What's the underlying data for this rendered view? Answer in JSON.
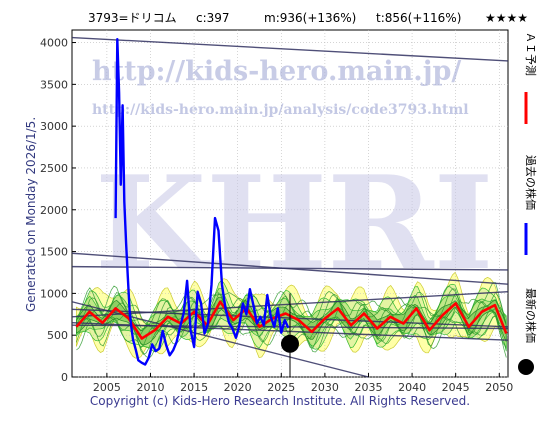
{
  "header": {
    "code_name": "3793=ドリコム",
    "current": "c:397",
    "mean": "m:936(+136%)",
    "target": "t:856(+116%)",
    "rating": "★★★★"
  },
  "side_label": "Generated on Monday 2026/1/5.",
  "watermark": {
    "url": "http://kids-hero.main.jp/",
    "analysis_url": "http://kids-hero.main.jp/analysis/code3793.html",
    "logo": "KHRI"
  },
  "legend": {
    "ai_label": "ＡＩ予測",
    "past_label": "過去の株価",
    "latest_label": "最新の株価"
  },
  "footer": "Copyright (c) Kids-Hero Research Institute. All Rights Reserved.",
  "colors": {
    "ai": "#ff0000",
    "past": "#0000ff",
    "latest": "#000000",
    "band_light": "#ffff99",
    "band_green": "#33bb33",
    "trend_lines": "#303060",
    "watermark": "#aab0d8"
  },
  "chart_data": {
    "type": "line",
    "xlim": [
      2001,
      2051
    ],
    "ylim": [
      0,
      4150
    ],
    "xticks": [
      2005,
      2010,
      2015,
      2020,
      2025,
      2030,
      2035,
      2040,
      2045,
      2050
    ],
    "yticks": [
      0,
      500,
      1000,
      1500,
      2000,
      2500,
      3000,
      3500,
      4000
    ],
    "grid": true,
    "latest_point": {
      "x": 2026.0,
      "y": 397
    },
    "series": [
      {
        "name": "過去の株価",
        "x": [
          2006.0,
          2006.2,
          2006.4,
          2006.6,
          2006.8,
          2007.0,
          2007.2,
          2007.4,
          2007.6,
          2007.8,
          2008.0,
          2008.3,
          2008.6,
          2009.0,
          2009.4,
          2009.8,
          2010.2,
          2010.6,
          2011.0,
          2011.4,
          2011.8,
          2012.2,
          2012.6,
          2013.0,
          2013.4,
          2013.8,
          2014.2,
          2014.6,
          2015.0,
          2015.4,
          2015.8,
          2016.2,
          2016.6,
          2017.0,
          2017.4,
          2017.8,
          2018.2,
          2018.6,
          2019.0,
          2019.4,
          2019.8,
          2020.2,
          2020.6,
          2021.0,
          2021.4,
          2021.8,
          2022.2,
          2022.6,
          2023.0,
          2023.4,
          2023.8,
          2024.2,
          2024.6,
          2025.0,
          2025.4,
          2025.8
        ],
        "y": [
          1900,
          4040,
          3400,
          2300,
          3250,
          2100,
          1600,
          1200,
          800,
          600,
          450,
          330,
          200,
          170,
          150,
          230,
          390,
          310,
          340,
          550,
          380,
          260,
          320,
          420,
          600,
          760,
          1150,
          560,
          360,
          1020,
          880,
          520,
          640,
          1100,
          1900,
          1750,
          1100,
          820,
          650,
          580,
          470,
          620,
          880,
          750,
          1050,
          860,
          640,
          720,
          620,
          980,
          720,
          600,
          820,
          530,
          680,
          590
        ]
      },
      {
        "name": "ＡＩ予測",
        "x": [
          2001.5,
          2003,
          2004.5,
          2006,
          2007.5,
          2009,
          2010.5,
          2012,
          2013.5,
          2015,
          2016.5,
          2018,
          2019.5,
          2021,
          2022.5,
          2024,
          2025.5,
          2027,
          2028.5,
          2030,
          2031.5,
          2033,
          2034.5,
          2036,
          2037.5,
          2039,
          2040.5,
          2042,
          2043.5,
          2045,
          2046.5,
          2048,
          2049.5,
          2050.8
        ],
        "y": [
          600,
          780,
          650,
          820,
          700,
          460,
          560,
          720,
          640,
          780,
          620,
          900,
          680,
          820,
          600,
          700,
          760,
          680,
          540,
          700,
          820,
          620,
          760,
          580,
          720,
          640,
          820,
          560,
          740,
          880,
          600,
          780,
          860,
          520
        ]
      }
    ],
    "trend_lines": [
      {
        "x": [
          2001,
          2051
        ],
        "y": [
          4060,
          3780
        ]
      },
      {
        "x": [
          2001,
          2051
        ],
        "y": [
          1480,
          1110
        ]
      },
      {
        "x": [
          2001,
          2051
        ],
        "y": [
          1320,
          1280
        ]
      },
      {
        "x": [
          2001,
          2051
        ],
        "y": [
          810,
          600
        ]
      },
      {
        "x": [
          2001,
          2051
        ],
        "y": [
          650,
          440
        ]
      },
      {
        "x": [
          2001,
          2051
        ],
        "y": [
          620,
          580
        ]
      },
      {
        "x": [
          2001,
          2051
        ],
        "y": [
          720,
          1020
        ]
      },
      {
        "x": [
          2001,
          2035
        ],
        "y": [
          900,
          0
        ]
      }
    ]
  }
}
